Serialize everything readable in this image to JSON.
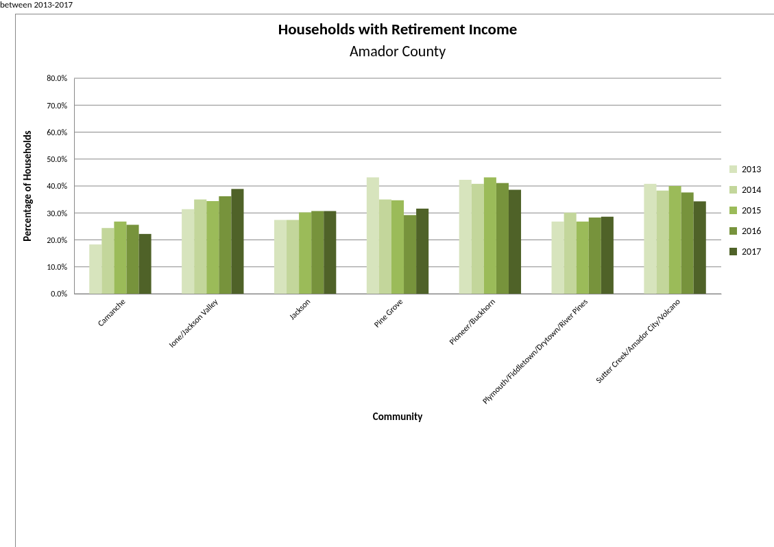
{
  "chart_data": {
    "type": "bar",
    "title": "Households with Retirement Income",
    "subtitle": "Amador County",
    "xlabel": "Community",
    "ylabel": "Percentage of Households",
    "annotations": [
      "between 2013-2017"
    ],
    "categories": [
      "Camanche",
      "Ione/Jackson Valley",
      "Jackson",
      "Pine Grove",
      "Pioneer/Buckhorn",
      "Plymouth/Fiddletown/Drytown/River Pines",
      "Sutter Creek/Amador City/Volcano"
    ],
    "series": [
      {
        "name": "2013",
        "color": "#d7e4bd",
        "values": [
          18.3,
          31.4,
          27.4,
          43.2,
          42.3,
          26.8,
          40.8
        ]
      },
      {
        "name": "2014",
        "color": "#c3d69b",
        "values": [
          24.4,
          35.0,
          27.4,
          35.0,
          40.8,
          30.1,
          38.3
        ]
      },
      {
        "name": "2015",
        "color": "#9bbb59",
        "values": [
          26.8,
          34.4,
          30.2,
          34.7,
          43.2,
          26.8,
          40.0
        ]
      },
      {
        "name": "2016",
        "color": "#77933c",
        "values": [
          25.6,
          36.2,
          30.7,
          29.2,
          41.1,
          28.3,
          37.6
        ]
      },
      {
        "name": "2017",
        "color": "#4f6228",
        "values": [
          22.2,
          38.9,
          30.7,
          31.6,
          38.6,
          28.6,
          34.3
        ]
      }
    ],
    "ylim": [
      0,
      80
    ],
    "yticks": [
      {
        "value": 0,
        "label": "0.0%"
      },
      {
        "value": 10,
        "label": "10.0%"
      },
      {
        "value": 20,
        "label": "20.0%"
      },
      {
        "value": 30,
        "label": "30.0%"
      },
      {
        "value": 40,
        "label": "40.0%"
      },
      {
        "value": 50,
        "label": "50.0%"
      },
      {
        "value": 60,
        "label": "60.0%"
      },
      {
        "value": 70,
        "label": "70.0%"
      },
      {
        "value": 80,
        "label": "80.0%"
      }
    ],
    "grid": "y",
    "legend": "right"
  }
}
